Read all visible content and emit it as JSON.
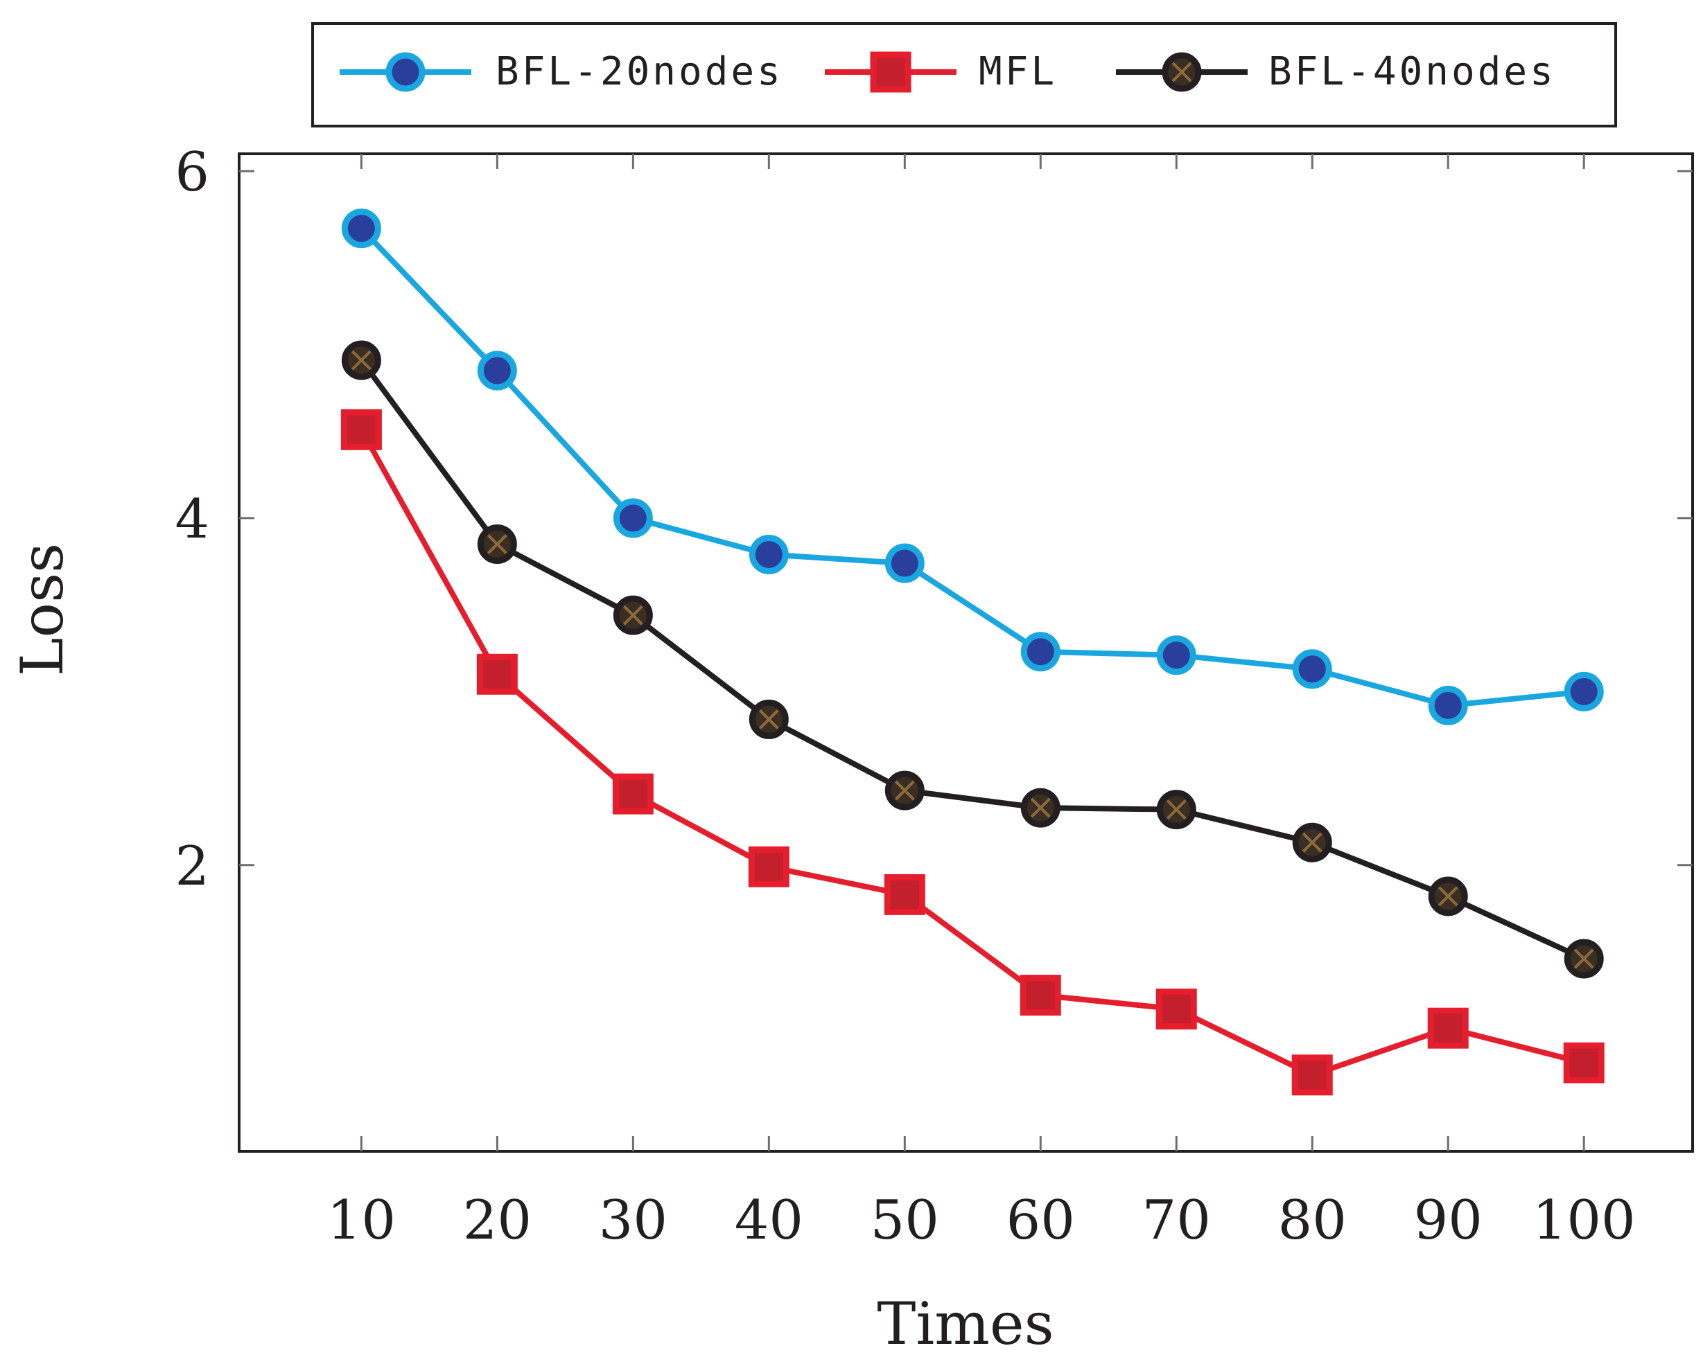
{
  "chart_data": {
    "type": "line",
    "title": "",
    "xlabel": "Times",
    "ylabel": "Loss",
    "x": [
      10,
      20,
      30,
      40,
      50,
      60,
      70,
      80,
      90,
      100
    ],
    "x_tick_labels": [
      "10",
      "20",
      "30",
      "40",
      "50",
      "60",
      "70",
      "80",
      "90",
      "100"
    ],
    "y_ticks": [
      2,
      4,
      6
    ],
    "y_tick_labels": [
      "2",
      "4",
      "6"
    ],
    "xlim": [
      1,
      108
    ],
    "ylim": [
      0.35,
      6.1
    ],
    "grid": false,
    "legend_position": "top",
    "series": [
      {
        "name": "BFL-20nodes",
        "values": [
          5.67,
          4.85,
          4.0,
          3.79,
          3.74,
          3.23,
          3.21,
          3.13,
          2.92,
          3.0
        ],
        "color": "#1aa7e0",
        "marker": "circle",
        "marker_fill": "#2a3f9c"
      },
      {
        "name": "MFL",
        "values": [
          4.51,
          3.1,
          2.41,
          1.99,
          1.83,
          1.25,
          1.17,
          0.79,
          1.06,
          0.86
        ],
        "color": "#e41e2d",
        "marker": "square",
        "marker_fill": "#c41f2c"
      },
      {
        "name": "BFL-40nodes",
        "values": [
          4.91,
          3.85,
          3.44,
          2.84,
          2.43,
          2.33,
          2.32,
          2.13,
          1.82,
          1.46
        ],
        "color": "#231f20",
        "marker": "circle-x",
        "marker_fill": "#3a2e22",
        "marker_cross": "#8c6a3c"
      }
    ]
  }
}
